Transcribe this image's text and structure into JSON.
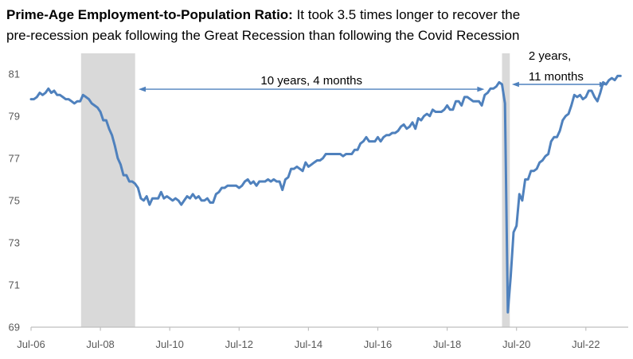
{
  "title": {
    "line1_bold": "Prime-Age Employment-to-Population Ratio:",
    "line1_rest": " It took 3.5 times longer to recover the",
    "line2": "pre-recession peak following the Great Recession than following the Covid Recession"
  },
  "chart_data": {
    "type": "line",
    "series_name": "Prime-age (25-54) employment-to-population ratio",
    "x_start_label": "Jul-2006",
    "frequency": "monthly",
    "values": [
      79.8,
      79.8,
      79.9,
      80.1,
      80.0,
      80.1,
      80.3,
      80.1,
      80.2,
      80.0,
      80.0,
      79.9,
      79.8,
      79.8,
      79.7,
      79.6,
      79.7,
      79.7,
      80.0,
      79.9,
      79.8,
      79.6,
      79.5,
      79.4,
      79.2,
      78.8,
      78.8,
      78.4,
      78.1,
      77.6,
      77.0,
      76.7,
      76.2,
      76.2,
      75.9,
      75.9,
      75.8,
      75.6,
      75.1,
      75.0,
      75.2,
      74.8,
      75.1,
      75.1,
      75.1,
      75.4,
      75.1,
      75.2,
      75.1,
      75.0,
      75.1,
      75.0,
      74.8,
      75.0,
      75.2,
      75.1,
      75.3,
      75.1,
      75.2,
      75.0,
      75.0,
      75.1,
      74.9,
      74.9,
      75.3,
      75.4,
      75.6,
      75.6,
      75.7,
      75.7,
      75.7,
      75.7,
      75.6,
      75.7,
      75.9,
      76.0,
      75.8,
      75.9,
      75.7,
      75.9,
      75.9,
      75.9,
      76.0,
      75.9,
      76.0,
      75.9,
      75.9,
      75.5,
      76.0,
      76.1,
      76.5,
      76.5,
      76.6,
      76.5,
      76.4,
      76.8,
      76.6,
      76.7,
      76.8,
      76.9,
      76.9,
      77.0,
      77.2,
      77.2,
      77.2,
      77.2,
      77.2,
      77.2,
      77.1,
      77.2,
      77.2,
      77.2,
      77.4,
      77.4,
      77.7,
      77.8,
      78.0,
      77.8,
      77.8,
      77.8,
      78.0,
      77.8,
      78.0,
      78.1,
      78.1,
      78.2,
      78.2,
      78.3,
      78.5,
      78.6,
      78.4,
      78.5,
      78.7,
      78.4,
      78.9,
      78.8,
      79.0,
      79.1,
      79.0,
      79.3,
      79.2,
      79.2,
      79.2,
      79.3,
      79.5,
      79.3,
      79.3,
      79.7,
      79.7,
      79.5,
      79.9,
      79.9,
      79.8,
      79.7,
      79.7,
      79.7,
      79.5,
      80.0,
      80.1,
      80.3,
      80.3,
      80.4,
      80.6,
      80.5,
      79.6,
      69.7,
      71.4,
      73.5,
      73.8,
      75.3,
      75.0,
      76.0,
      76.0,
      76.4,
      76.4,
      76.5,
      76.8,
      76.9,
      77.1,
      77.2,
      77.8,
      78.0,
      78.0,
      78.3,
      78.8,
      79.0,
      79.1,
      79.5,
      80.0,
      79.9,
      80.0,
      79.8,
      79.9,
      80.2,
      80.2,
      79.9,
      79.7,
      80.1,
      80.6,
      80.5,
      80.7,
      80.8,
      80.7,
      80.9,
      80.9
    ],
    "x_tick_labels": [
      "Jul-06",
      "Jul-08",
      "Jul-10",
      "Jul-12",
      "Jul-14",
      "Jul-16",
      "Jul-18",
      "Jul-20",
      "Jul-22"
    ],
    "x_tick_indices": [
      0,
      24,
      48,
      72,
      96,
      120,
      144,
      168,
      192
    ],
    "y_ticks": [
      69,
      71,
      73,
      75,
      77,
      79,
      81
    ],
    "ylim": [
      69,
      82
    ],
    "grid": "off",
    "legend": "none",
    "recessions": [
      {
        "name": "Great Recession",
        "start_index": 17.3,
        "end_index": 36.0
      },
      {
        "name": "Covid Recession",
        "start_index": 163.0,
        "end_index": 165.7
      }
    ],
    "annotations": [
      {
        "id": "great-recession-recovery",
        "text": "10 years, 4 months",
        "x1_index": 37.2,
        "x2_index": 156.9,
        "y_value": 80.27
      },
      {
        "id": "covid-recovery",
        "text_lines": [
          "2 years,",
          "11 months"
        ],
        "x1_index": 166.4,
        "x2_index": 199.2,
        "y_value": 80.5
      }
    ],
    "colors": {
      "line": "#4F81BD",
      "arrow": "#4F81BD",
      "recession_band": "#D9D9D9",
      "axis": "#BFBFBF",
      "tick_label": "#595959",
      "annotation_text": "#000000"
    }
  }
}
